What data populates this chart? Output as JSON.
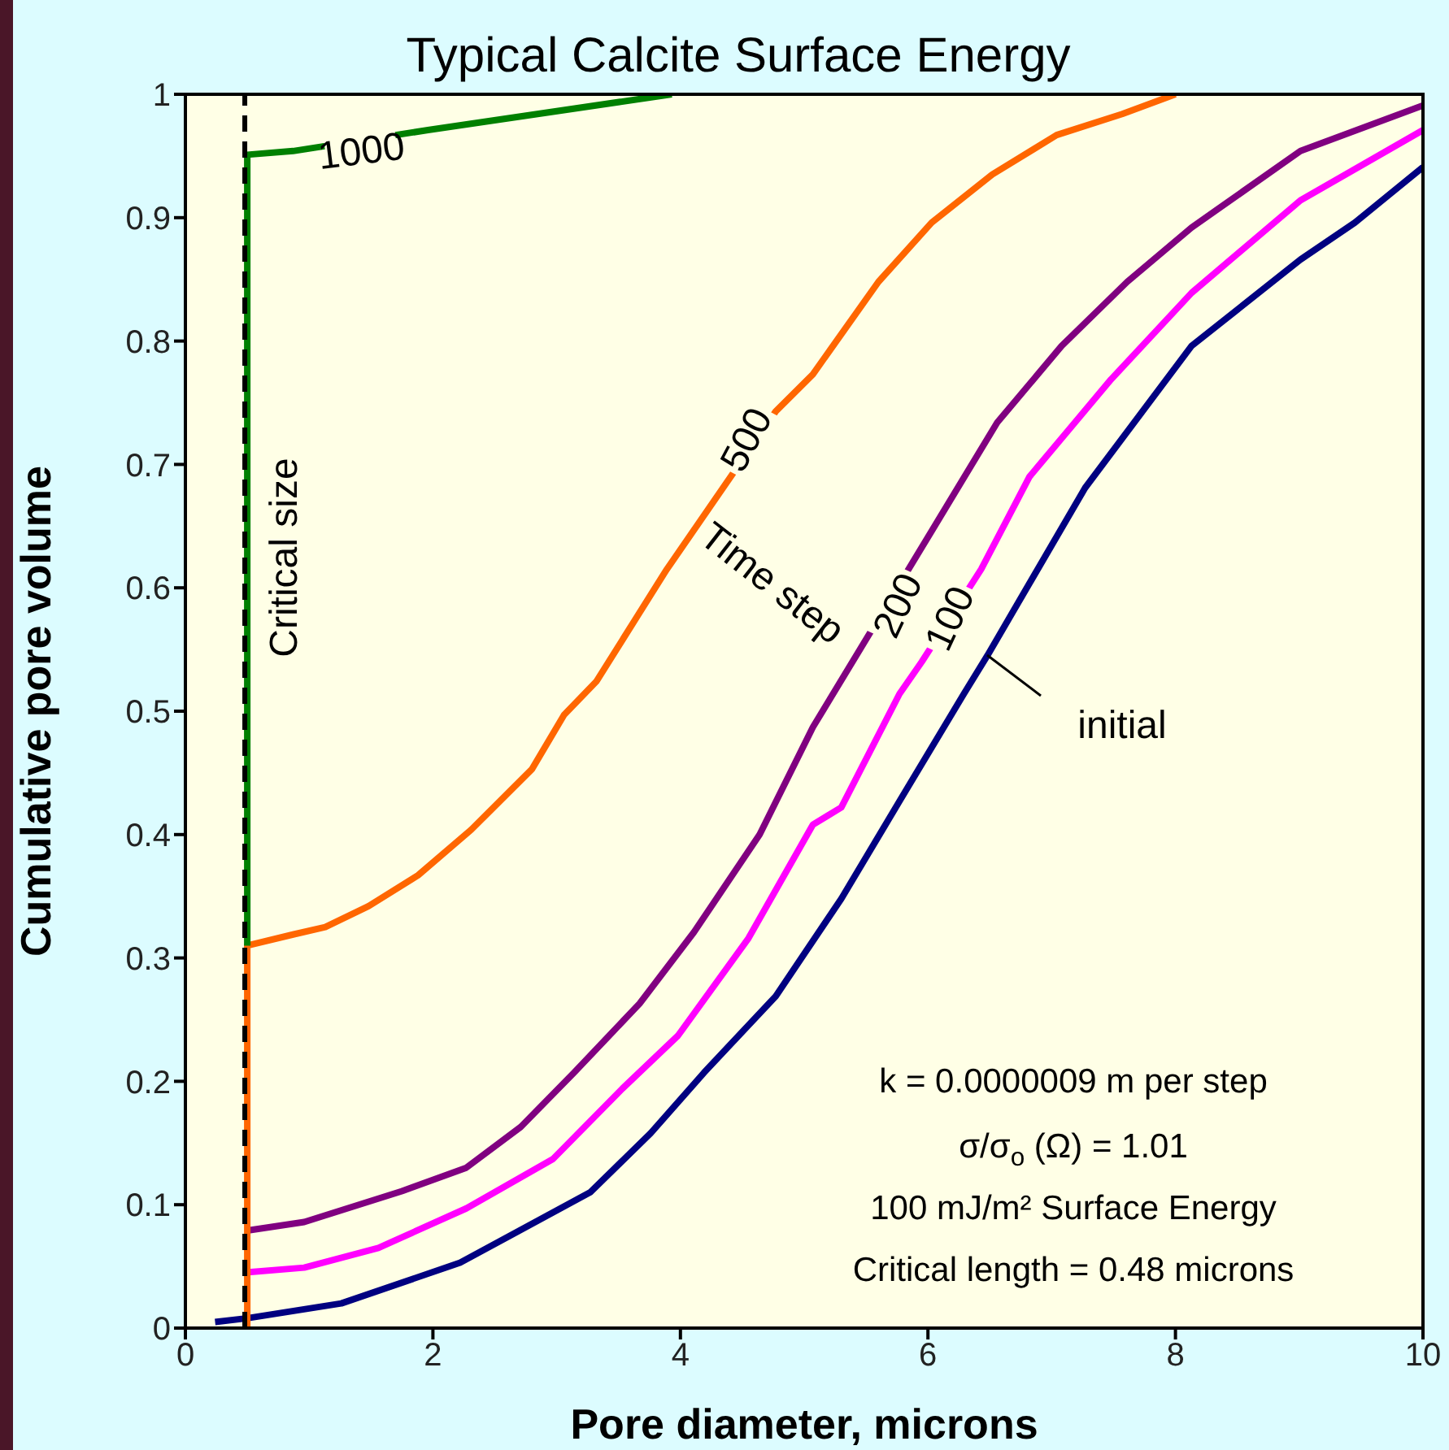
{
  "chart_data": {
    "type": "line",
    "title": "Typical Calcite Surface Energy",
    "xlabel": "Pore diameter, microns",
    "ylabel": "Cumulative pore volume",
    "xlim": [
      0,
      10
    ],
    "xticks": [
      0,
      2,
      4,
      6,
      8,
      10
    ],
    "ylim": [
      0,
      1
    ],
    "yticks": [
      0,
      0.1,
      0.2,
      0.3,
      0.4,
      0.5,
      0.6,
      0.7,
      0.8,
      0.9,
      1
    ],
    "grid": false,
    "marker": "none",
    "line_style": "solid",
    "series": [
      {
        "name": "initial",
        "color": "#000080",
        "x": [
          0.24,
          0.5,
          1.26,
          2.22,
          3.27,
          3.76,
          4.19,
          4.77,
          5.3,
          5.77,
          6.29,
          6.48,
          7.27,
          8.13,
          9.01,
          9.45,
          10
        ],
        "values": [
          0.005,
          0.008,
          0.02,
          0.053,
          0.11,
          0.158,
          0.207,
          0.269,
          0.348,
          0.427,
          0.514,
          0.545,
          0.681,
          0.796,
          0.866,
          0.896,
          0.941
        ]
      },
      {
        "name": "100",
        "color": "#ff00ff",
        "x": [
          0.47,
          0.96,
          1.56,
          2.27,
          2.97,
          3.53,
          3.98,
          4.55,
          5.07,
          5.3,
          5.77,
          5.95,
          6.43,
          6.82,
          7.48,
          8.13,
          9.01,
          10
        ],
        "values": [
          0.045,
          0.049,
          0.065,
          0.097,
          0.137,
          0.194,
          0.237,
          0.316,
          0.408,
          0.422,
          0.514,
          0.54,
          0.615,
          0.69,
          0.769,
          0.839,
          0.914,
          0.971
        ]
      },
      {
        "name": "200",
        "color": "#800080",
        "x": [
          0.5,
          0.96,
          1.75,
          2.27,
          2.71,
          3.14,
          3.67,
          4.11,
          4.64,
          5.07,
          6.03,
          6.56,
          7.08,
          7.61,
          8.13,
          9.01,
          10
        ],
        "values": [
          0.079,
          0.086,
          0.111,
          0.13,
          0.163,
          0.207,
          0.263,
          0.321,
          0.4,
          0.487,
          0.646,
          0.734,
          0.796,
          0.848,
          0.892,
          0.954,
          0.991
        ]
      },
      {
        "name": "500",
        "color": "#ff6600",
        "x": [
          0.5,
          0.5,
          0.87,
          1.13,
          1.48,
          1.88,
          2.31,
          2.8,
          3.06,
          3.32,
          3.89,
          4.77,
          5.07,
          5.6,
          6.03,
          6.52,
          7.04,
          7.57,
          8.0
        ],
        "values": [
          0,
          0.31,
          0.319,
          0.325,
          0.342,
          0.367,
          0.404,
          0.453,
          0.497,
          0.524,
          0.615,
          0.743,
          0.773,
          0.848,
          0.896,
          0.935,
          0.967,
          0.984,
          1.0
        ]
      },
      {
        "name": "1000",
        "color": "#008000",
        "x": [
          0.5,
          0.5,
          0.87,
          1.96,
          3.93
        ],
        "values": [
          0.31,
          0.951,
          0.954,
          0.971,
          1.0
        ]
      }
    ],
    "ref_lines": [
      {
        "axis": "x",
        "value": 0.48,
        "label": "Critical size",
        "color": "#000000",
        "line_style": "dashed"
      }
    ],
    "annotations": [
      "Time step",
      "k = 0.0000009 m per step",
      "σ/σ$_{o}$ (Ω) = 1.01",
      "100 mJ/m² Surface Energy",
      "Critical length = 0.48 microns"
    ]
  }
}
